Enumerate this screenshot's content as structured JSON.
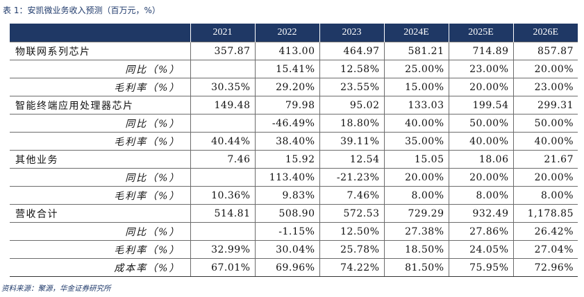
{
  "caption": "表 1：安凯微业务收入预测（百万元，%）",
  "columns": [
    "",
    "2021",
    "2022",
    "2023",
    "2024E",
    "2025E",
    "2026E"
  ],
  "rows": [
    {
      "label": "物联网系列芯片",
      "type": "main",
      "values": [
        "357.87",
        "413.00",
        "464.97",
        "581.21",
        "714.89",
        "857.87"
      ]
    },
    {
      "label": "同比（%）",
      "type": "sub",
      "values": [
        "",
        "15.41%",
        "12.58%",
        "25.00%",
        "23.00%",
        "20.00%"
      ]
    },
    {
      "label": "毛利率（%）",
      "type": "sub",
      "values": [
        "30.35%",
        "29.20%",
        "23.55%",
        "15.00%",
        "20.00%",
        "23.00%"
      ]
    },
    {
      "label": "智能终端应用处理器芯片",
      "type": "main",
      "values": [
        "149.48",
        "79.98",
        "95.02",
        "133.03",
        "199.54",
        "299.31"
      ]
    },
    {
      "label": "同比（%）",
      "type": "sub",
      "values": [
        "",
        "-46.49%",
        "18.80%",
        "40.00%",
        "50.00%",
        "50.00%"
      ]
    },
    {
      "label": "毛利率（%）",
      "type": "sub",
      "values": [
        "40.44%",
        "38.40%",
        "39.11%",
        "35.00%",
        "40.00%",
        "40.00%"
      ]
    },
    {
      "label": "其他业务",
      "type": "main",
      "values": [
        "7.46",
        "15.92",
        "12.54",
        "15.05",
        "18.06",
        "21.67"
      ]
    },
    {
      "label": "同比（%）",
      "type": "sub",
      "values": [
        "",
        "113.40%",
        "-21.23%",
        "20.00%",
        "20.00%",
        "20.00%"
      ]
    },
    {
      "label": "毛利率（%）",
      "type": "sub",
      "values": [
        "10.36%",
        "9.83%",
        "7.46%",
        "8.00%",
        "8.00%",
        "8.00%"
      ]
    },
    {
      "label": "营收合计",
      "type": "main",
      "values": [
        "514.81",
        "508.90",
        "572.53",
        "729.29",
        "932.49",
        "1,178.85"
      ]
    },
    {
      "label": "同比（%）",
      "type": "sub",
      "values": [
        "",
        "-1.15%",
        "12.50%",
        "27.38%",
        "27.86%",
        "26.42%"
      ]
    },
    {
      "label": "毛利率（%）",
      "type": "sub",
      "values": [
        "32.99%",
        "30.04%",
        "25.78%",
        "18.50%",
        "24.05%",
        "27.04%"
      ]
    },
    {
      "label": "成本率（%）",
      "type": "sub",
      "values": [
        "67.01%",
        "69.96%",
        "74.22%",
        "81.50%",
        "75.95%",
        "72.96%"
      ]
    }
  ],
  "source": "资料来源：聚源，华金证券研究所",
  "colors": {
    "header_bg": "#1f3865",
    "header_text": "#ffffff",
    "caption_text": "#1f3a6b"
  }
}
